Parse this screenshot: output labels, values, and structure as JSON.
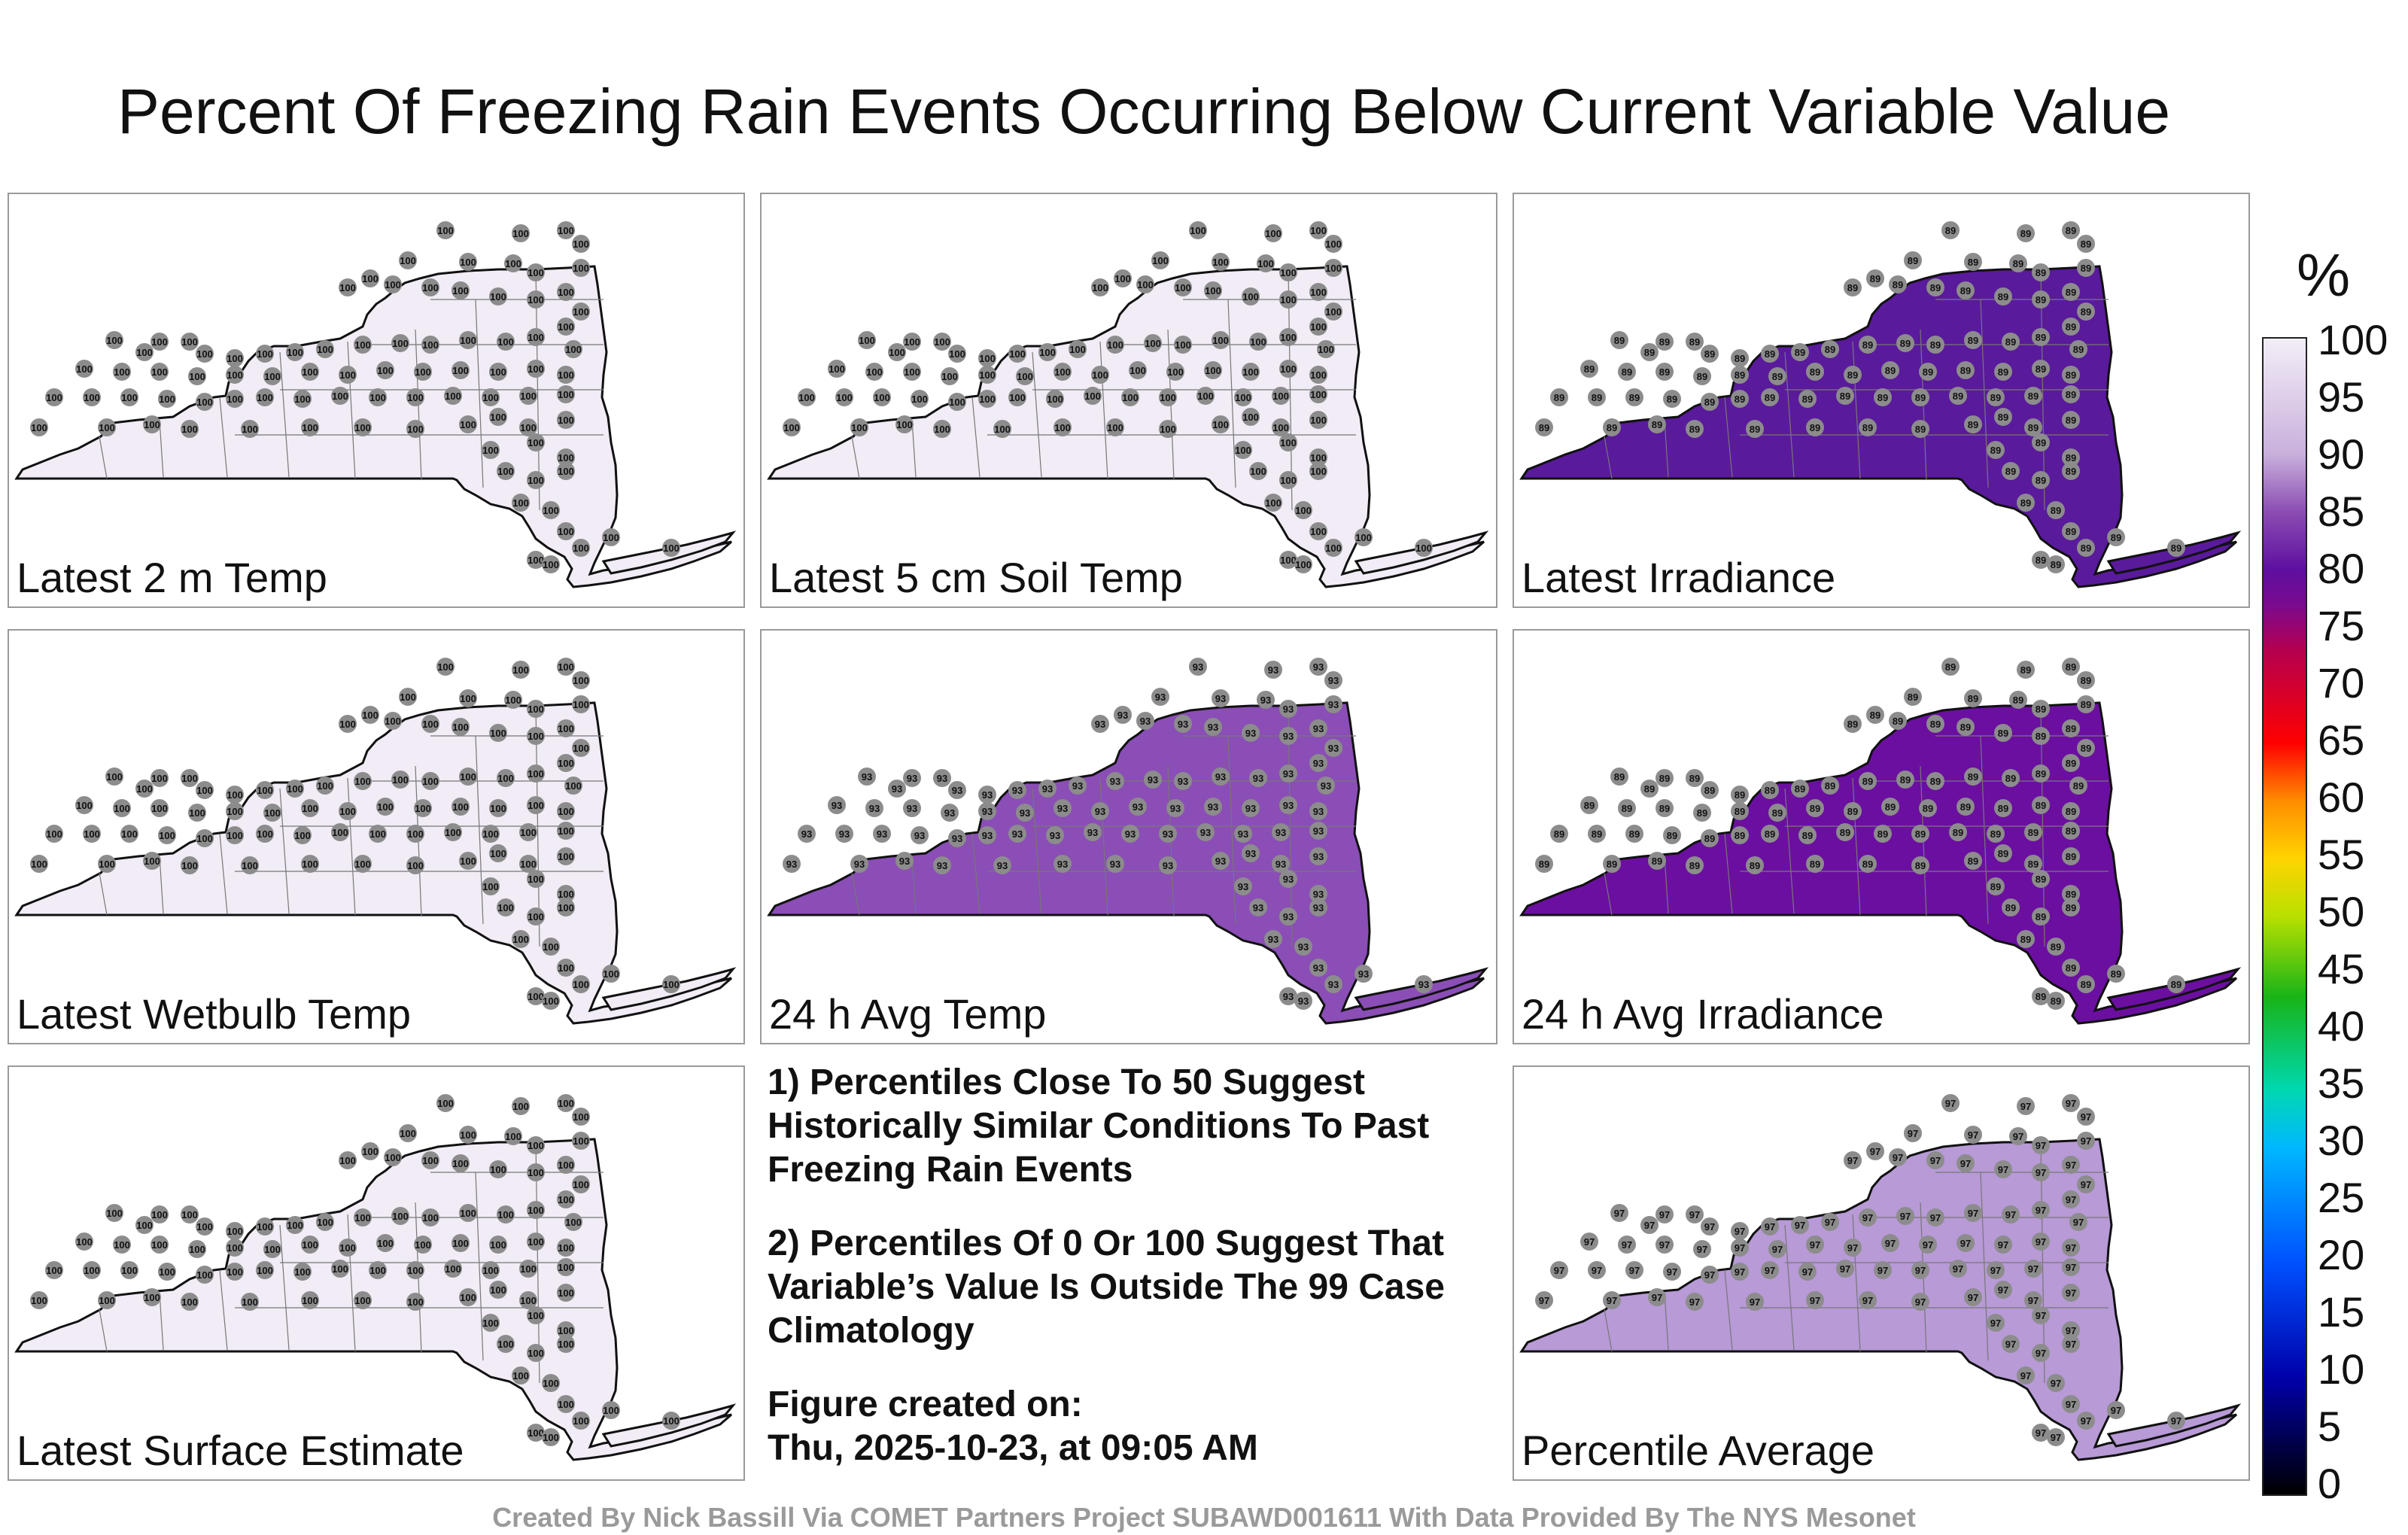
{
  "title": "Percent Of Freezing Rain Events Occurring Below Current Variable Value",
  "panels": [
    {
      "label": "Latest 2 m Temp",
      "fill": "#f1ecf5",
      "value": "100"
    },
    {
      "label": "Latest 5 cm Soil Temp",
      "fill": "#f1ecf5",
      "value": "100"
    },
    {
      "label": "Latest Irradiance",
      "fill": "#5a1a9c",
      "value": "89"
    },
    {
      "label": "Latest Wetbulb Temp",
      "fill": "#f1ecf5",
      "value": "100"
    },
    {
      "label": "24 h Avg Temp",
      "fill": "#8a4eb6",
      "value": "93"
    },
    {
      "label": "24 h Avg Irradiance",
      "fill": "#6b0fa0",
      "value": "89"
    },
    {
      "label": "Latest Surface Estimate",
      "fill": "#f1ecf5",
      "value": "100"
    },
    {
      "label": "Percentile Average",
      "fill": "#b79ad6",
      "value": "97"
    }
  ],
  "notes": {
    "line1": "1) Percentiles Close To 50 Suggest Historically Similar Conditions To Past Freezing Rain Events",
    "line2": "2) Percentiles Of 0 Or 100 Suggest That Variable’s Value Is Outside The 99 Case Climatology",
    "created_label": "Figure created on:",
    "created_date": "Thu, 2025-10-23, at 09:05 AM"
  },
  "credit": "Created By Nick Bassill Via COMET Partners Project SUBAWD001611 With Data Provided By The NYS Mesonet",
  "colorbar": {
    "unit": "%",
    "ticks": [
      "100",
      "95",
      "90",
      "85",
      "80",
      "75",
      "70",
      "65",
      "60",
      "55",
      "50",
      "45",
      "40",
      "35",
      "30",
      "25",
      "20",
      "15",
      "10",
      "5",
      "0"
    ]
  }
}
